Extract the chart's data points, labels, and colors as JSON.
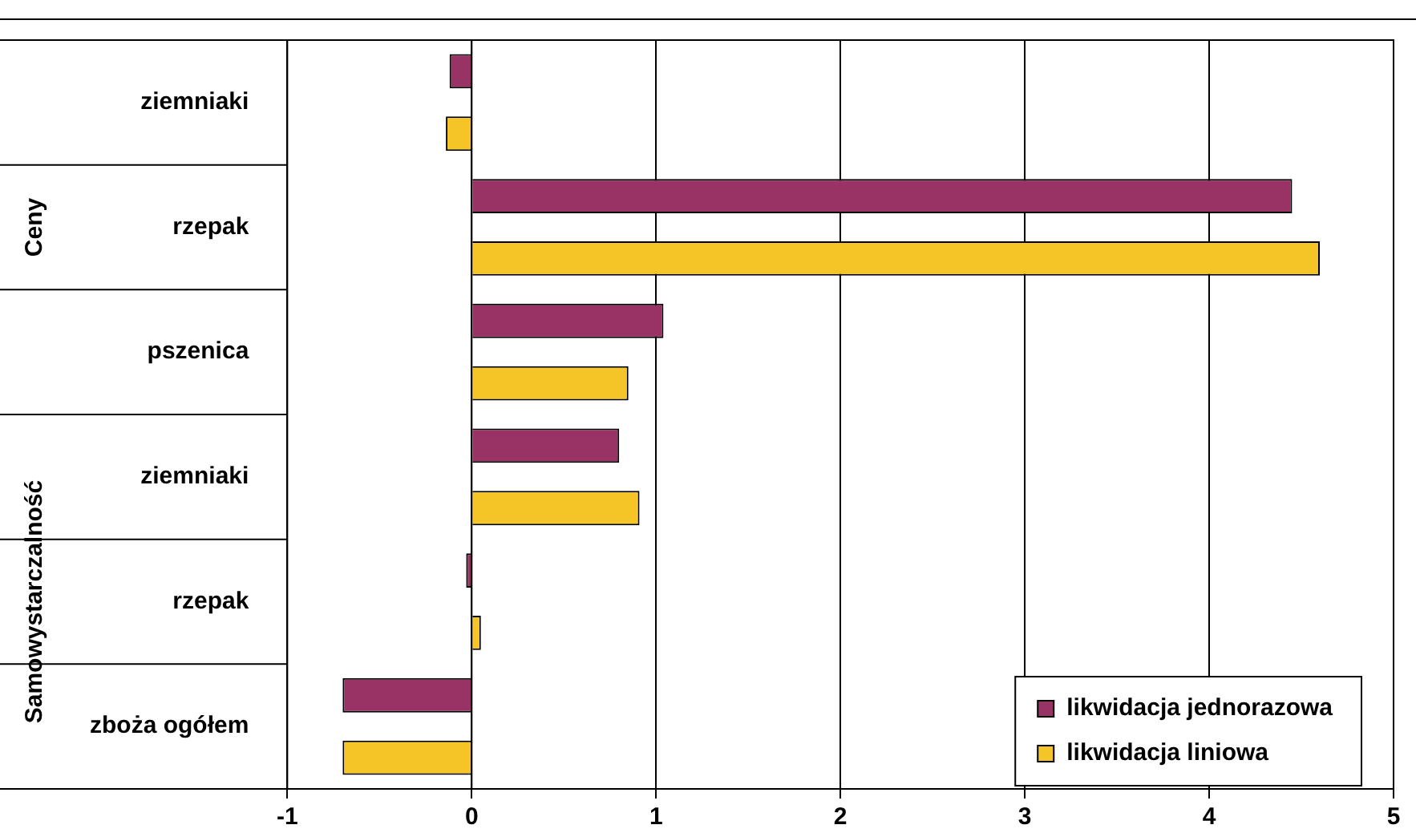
{
  "chart_data": {
    "type": "bar",
    "orientation": "horizontal",
    "categories": [
      "ziemniaki",
      "rzepak",
      "pszenica",
      "ziemniaki",
      "rzepak",
      "zboża ogółem"
    ],
    "series": [
      {
        "name": "likwidacja jednorazowa",
        "color": "#993366",
        "values": [
          -0.12,
          4.45,
          1.04,
          0.8,
          -0.03,
          -0.7
        ]
      },
      {
        "name": "likwidacja liniowa",
        "color": "#f5c527",
        "values": [
          -0.14,
          4.6,
          0.85,
          0.91,
          0.05,
          -0.7
        ]
      }
    ],
    "xlim": [
      -1,
      5
    ],
    "xticks": [
      -1,
      0,
      1,
      2,
      3,
      4,
      5
    ],
    "grid": "x",
    "legend": "bottom right",
    "annotations": [
      "Ceny",
      "Samowystarczalność"
    ]
  }
}
